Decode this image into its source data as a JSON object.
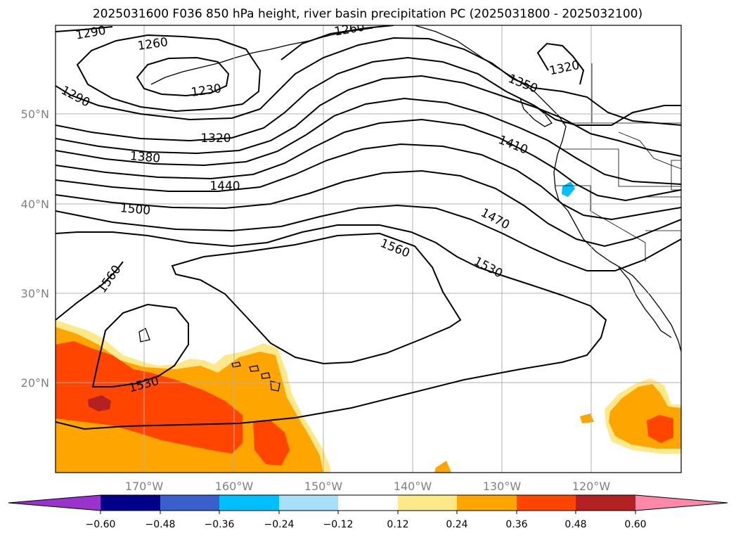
{
  "title": "2025031600 F036 850 hPa height, river basin precipitation PC (2025031800 - 2025032100)",
  "map": {
    "lat_labels": [
      "50°N",
      "40°N",
      "30°N",
      "20°N"
    ],
    "lon_labels": [
      "170°W",
      "160°W",
      "150°W",
      "140°W",
      "130°W",
      "120°W"
    ],
    "contour_labels": [
      "1290",
      "1260",
      "1260",
      "1230",
      "1290",
      "1320",
      "1380",
      "1440",
      "1500",
      "1560",
      "1530",
      "1560",
      "1530",
      "1470",
      "1410",
      "1350",
      "1320"
    ]
  },
  "colorbar": {
    "tick_labels": [
      "−0.60",
      "−0.48",
      "−0.36",
      "−0.24",
      "−0.12",
      "0.12",
      "0.24",
      "0.36",
      "0.48",
      "0.60"
    ],
    "colors": [
      "#9933cc",
      "#00008b",
      "#3a5fcd",
      "#00bfff",
      "#a8e0fa",
      "#ffffff",
      "#ffe88a",
      "#ffa500",
      "#ff4500",
      "#b22222",
      "#ff88aa"
    ]
  },
  "precip_colors": {
    "c024": "#ffe88a",
    "c036": "#ffa500",
    "c048": "#ff4500",
    "c060": "#b22222",
    "neg": "#00bfff"
  }
}
